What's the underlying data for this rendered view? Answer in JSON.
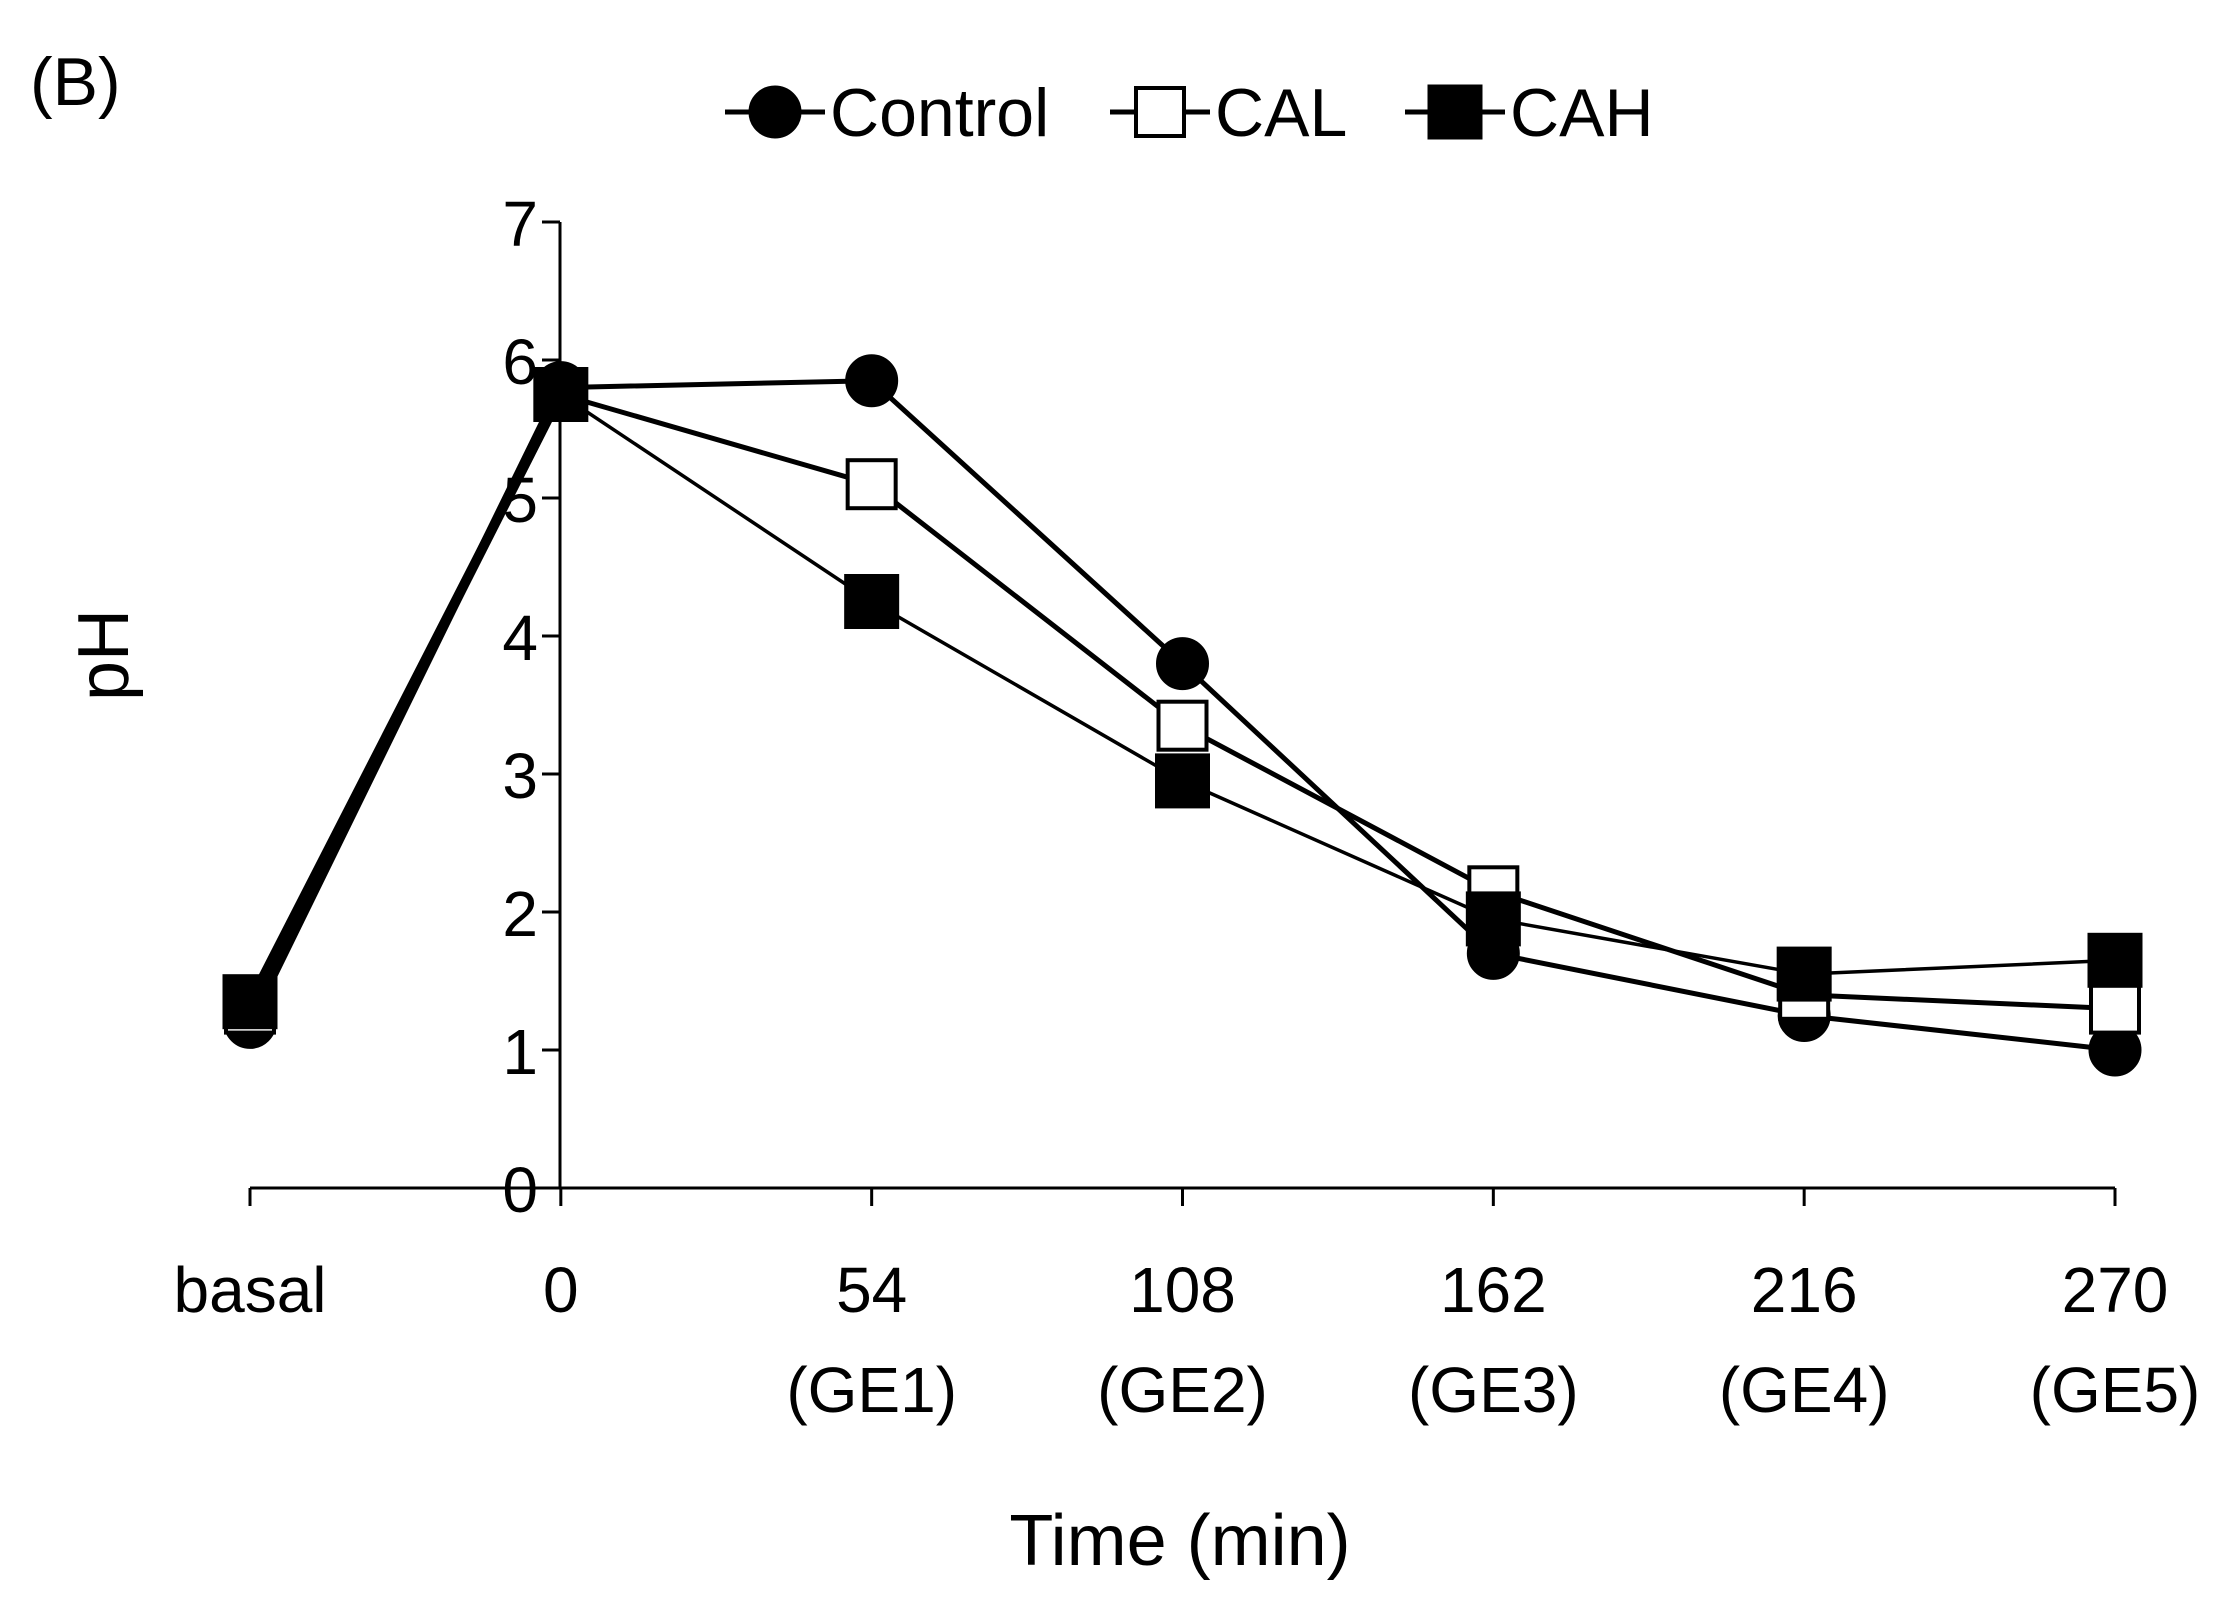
{
  "panel_label": "(B)",
  "colors": {
    "line": "#000000",
    "open_fill": "#ffffff",
    "background": "#ffffff"
  },
  "chart_data": {
    "type": "line",
    "title": "",
    "xlabel": "Time (min)",
    "ylabel": "pH",
    "ylim": [
      0,
      7
    ],
    "yticks": [
      0,
      1,
      2,
      3,
      4,
      5,
      6,
      7
    ],
    "grid": false,
    "legend_position": "top-center",
    "categories": [
      {
        "value": "basal",
        "sub": ""
      },
      {
        "value": "0",
        "sub": ""
      },
      {
        "value": "54",
        "sub": "(GE1)"
      },
      {
        "value": "108",
        "sub": "(GE2)"
      },
      {
        "value": "162",
        "sub": "(GE3)"
      },
      {
        "value": "216",
        "sub": "(GE4)"
      },
      {
        "value": "270",
        "sub": "(GE5)"
      }
    ],
    "series": [
      {
        "name": "Control",
        "marker": "circle-filled",
        "values": [
          1.2,
          5.8,
          5.85,
          3.8,
          1.7,
          1.25,
          1.0
        ]
      },
      {
        "name": "CAL",
        "marker": "square-open",
        "values": [
          1.3,
          5.75,
          5.1,
          3.35,
          2.15,
          1.4,
          1.3
        ]
      },
      {
        "name": "CAH",
        "marker": "square-filled",
        "values": [
          1.35,
          5.75,
          4.25,
          2.95,
          1.95,
          1.55,
          1.65
        ]
      }
    ]
  }
}
